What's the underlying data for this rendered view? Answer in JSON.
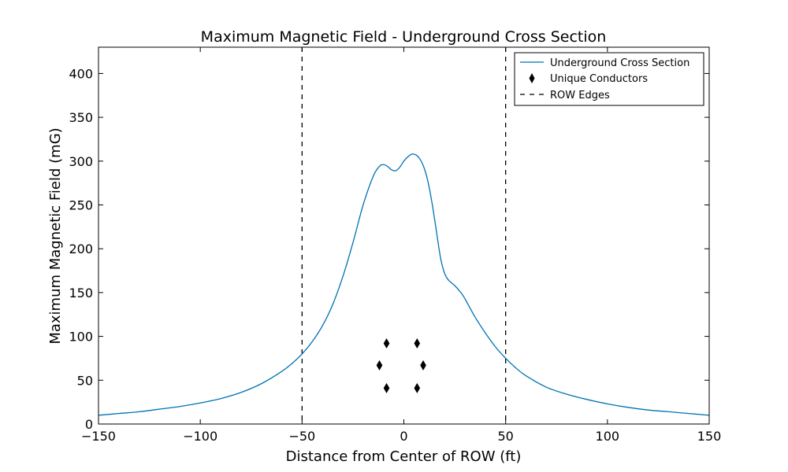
{
  "chart_data": {
    "type": "line",
    "title": "Maximum Magnetic Field - Underground Cross Section",
    "xlabel": "Distance from Center of ROW (ft)",
    "ylabel": "Maximum Magnetic Field (mG)",
    "xlim": [
      -150,
      150
    ],
    "ylim": [
      0,
      430
    ],
    "x_ticks": [
      -150,
      -100,
      -50,
      0,
      50,
      100,
      150
    ],
    "x_tick_labels": [
      "−150",
      "−100",
      "−50",
      "0",
      "50",
      "100",
      "150"
    ],
    "y_ticks": [
      0,
      50,
      100,
      150,
      200,
      250,
      300,
      350,
      400
    ],
    "y_tick_labels": [
      "0",
      "50",
      "100",
      "150",
      "200",
      "250",
      "300",
      "350",
      "400"
    ],
    "grid": false,
    "legend_position": "top-right",
    "series": [
      {
        "name": "Underground Cross Section",
        "kind": "line",
        "color": "#0072b2",
        "points": [
          [
            -150,
            10
          ],
          [
            -140,
            12
          ],
          [
            -130,
            14
          ],
          [
            -120,
            17
          ],
          [
            -110,
            20
          ],
          [
            -100,
            24
          ],
          [
            -90,
            29
          ],
          [
            -80,
            36
          ],
          [
            -70,
            46
          ],
          [
            -60,
            60
          ],
          [
            -55,
            69
          ],
          [
            -50,
            80
          ],
          [
            -45,
            94
          ],
          [
            -40,
            112
          ],
          [
            -35,
            136
          ],
          [
            -30,
            168
          ],
          [
            -25,
            207
          ],
          [
            -20,
            250
          ],
          [
            -15,
            283
          ],
          [
            -12,
            294
          ],
          [
            -10,
            296
          ],
          [
            -8,
            294
          ],
          [
            -6,
            290
          ],
          [
            -4,
            289
          ],
          [
            -2,
            293
          ],
          [
            0,
            300
          ],
          [
            2,
            305
          ],
          [
            4,
            308
          ],
          [
            6,
            307
          ],
          [
            8,
            302
          ],
          [
            10,
            292
          ],
          [
            12,
            275
          ],
          [
            14,
            250
          ],
          [
            16,
            220
          ],
          [
            18,
            190
          ],
          [
            20,
            172
          ],
          [
            22,
            164
          ],
          [
            25,
            158
          ],
          [
            28,
            150
          ],
          [
            30,
            143
          ],
          [
            35,
            122
          ],
          [
            40,
            104
          ],
          [
            45,
            88
          ],
          [
            50,
            75
          ],
          [
            55,
            64
          ],
          [
            60,
            55
          ],
          [
            70,
            42
          ],
          [
            80,
            34
          ],
          [
            90,
            28
          ],
          [
            100,
            23
          ],
          [
            110,
            19
          ],
          [
            120,
            16
          ],
          [
            130,
            14
          ],
          [
            140,
            12
          ],
          [
            150,
            10
          ]
        ]
      },
      {
        "name": "Unique Conductors",
        "kind": "marker",
        "marker": "diamond",
        "color": "#000000",
        "points": [
          [
            -8.5,
            92
          ],
          [
            6.5,
            92
          ],
          [
            -12,
            67
          ],
          [
            9.5,
            67
          ],
          [
            -8.5,
            41
          ],
          [
            6.5,
            41
          ]
        ]
      },
      {
        "name": "ROW Edges",
        "kind": "vline",
        "style": "dashed",
        "color": "#000000",
        "x_values": [
          -50,
          50
        ]
      }
    ]
  }
}
